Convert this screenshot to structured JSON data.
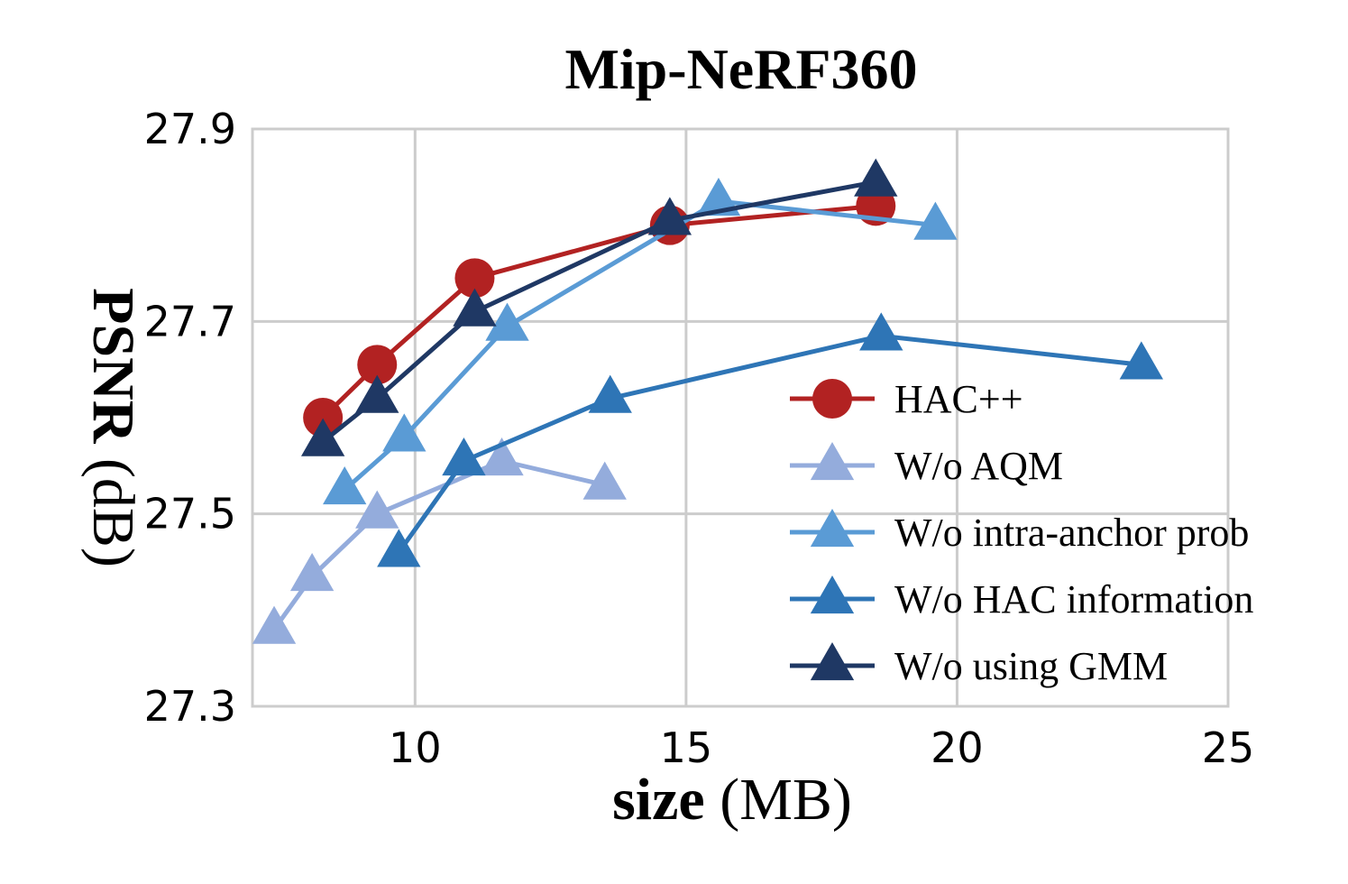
{
  "chart_data": {
    "type": "line",
    "title": "Mip-NeRF360",
    "xlabel_bold": "size",
    "xlabel_rest": " (MB)",
    "ylabel_bold": "PSNR",
    "ylabel_rest": " (dB)",
    "xlim": [
      7,
      25
    ],
    "ylim": [
      27.3,
      27.9
    ],
    "xticks": [
      10,
      15,
      20,
      25
    ],
    "xtick_labels": [
      "10",
      "15",
      "20",
      "25"
    ],
    "yticks": [
      27.3,
      27.5,
      27.7,
      27.9
    ],
    "ytick_labels": [
      "27.3",
      "27.5",
      "27.7",
      "27.9"
    ],
    "grid": true,
    "legend_position": "right",
    "series": [
      {
        "name": "HAC++",
        "color": "#b22222",
        "marker": "circle",
        "x": [
          8.3,
          9.3,
          11.1,
          14.7,
          18.5
        ],
        "y": [
          27.6,
          27.655,
          27.745,
          27.8,
          27.82
        ]
      },
      {
        "name": "W/o AQM",
        "color": "#94acdc",
        "marker": "triangle",
        "x": [
          7.4,
          8.1,
          9.3,
          11.6,
          13.5
        ],
        "y": [
          27.38,
          27.435,
          27.5,
          27.555,
          27.53
        ]
      },
      {
        "name": "W/o intra-anchor prob",
        "color": "#5a9bd5",
        "marker": "triangle",
        "x": [
          8.7,
          9.8,
          11.7,
          15.6,
          19.6
        ],
        "y": [
          27.525,
          27.58,
          27.695,
          27.825,
          27.8
        ]
      },
      {
        "name": "W/o HAC information",
        "color": "#2e75b6",
        "marker": "triangle",
        "x": [
          9.7,
          10.9,
          13.6,
          18.6,
          23.4
        ],
        "y": [
          27.46,
          27.555,
          27.62,
          27.685,
          27.655
        ]
      },
      {
        "name": "W/o using GMM",
        "color": "#1f3864",
        "marker": "triangle",
        "x": [
          8.3,
          9.3,
          11.1,
          14.7,
          18.5
        ],
        "y": [
          27.575,
          27.62,
          27.71,
          27.805,
          27.845
        ]
      }
    ]
  }
}
